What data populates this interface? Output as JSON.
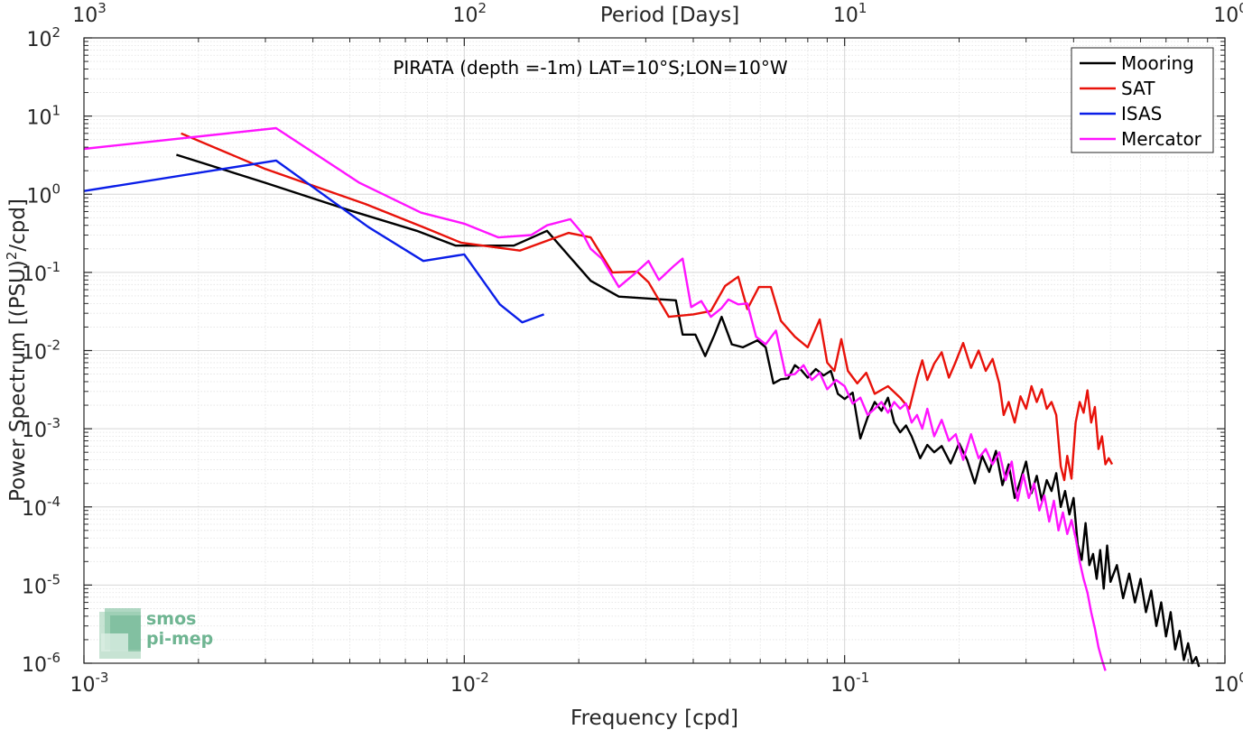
{
  "chart_data": {
    "type": "line",
    "title": "PIRATA (depth =-1m) LAT=10°S;LON=10°W",
    "xlabel": "Frequency [cpd]",
    "ylabel": "Power Spectrum [(PSU)",
    "ylabel_sup": "2",
    "ylabel_tail": "/cpd]",
    "top_xlabel": "Period [Days]",
    "x_scale": "log",
    "y_scale": "log",
    "xlim": [
      0.001,
      1
    ],
    "ylim": [
      1e-06,
      100
    ],
    "grid": true,
    "legend_position": "top-right",
    "x_ticks": [
      {
        "value": 0.001,
        "base": "10",
        "exp": "-3"
      },
      {
        "value": 0.01,
        "base": "10",
        "exp": "-2"
      },
      {
        "value": 0.1,
        "base": "10",
        "exp": "-1"
      },
      {
        "value": 1,
        "base": "10",
        "exp": "0"
      }
    ],
    "top_ticks": [
      {
        "value": 0.001,
        "base": "10",
        "exp": "3"
      },
      {
        "value": 0.01,
        "base": "10",
        "exp": "2"
      },
      {
        "value": 0.1,
        "base": "10",
        "exp": "1"
      },
      {
        "value": 1,
        "base": "10",
        "exp": "0"
      }
    ],
    "y_ticks": [
      {
        "value": 1e-06,
        "base": "10",
        "exp": "-6"
      },
      {
        "value": 1e-05,
        "base": "10",
        "exp": "-5"
      },
      {
        "value": 0.0001,
        "base": "10",
        "exp": "-4"
      },
      {
        "value": 0.001,
        "base": "10",
        "exp": "-3"
      },
      {
        "value": 0.01,
        "base": "10",
        "exp": "-2"
      },
      {
        "value": 0.1,
        "base": "10",
        "exp": "-1"
      },
      {
        "value": 1,
        "base": "10",
        "exp": "0"
      },
      {
        "value": 10,
        "base": "10",
        "exp": "1"
      },
      {
        "value": 100,
        "base": "10",
        "exp": "2"
      }
    ],
    "series": [
      {
        "name": "Mooring",
        "color": "#000000",
        "points": [
          [
            0.00175,
            3.2
          ],
          [
            0.003,
            1.4
          ],
          [
            0.005,
            0.62
          ],
          [
            0.0075,
            0.34
          ],
          [
            0.0095,
            0.22
          ],
          [
            0.0135,
            0.22
          ],
          [
            0.0165,
            0.34
          ],
          [
            0.0215,
            0.078
          ],
          [
            0.0255,
            0.049
          ],
          [
            0.031,
            0.046
          ],
          [
            0.036,
            0.044
          ],
          [
            0.0375,
            0.016
          ],
          [
            0.0405,
            0.016
          ],
          [
            0.043,
            0.0085
          ],
          [
            0.0455,
            0.016
          ],
          [
            0.0475,
            0.027
          ],
          [
            0.0505,
            0.012
          ],
          [
            0.054,
            0.011
          ],
          [
            0.059,
            0.0135
          ],
          [
            0.062,
            0.011
          ],
          [
            0.065,
            0.0038
          ],
          [
            0.068,
            0.0043
          ],
          [
            0.071,
            0.0044
          ],
          [
            0.074,
            0.0065
          ],
          [
            0.077,
            0.0056
          ],
          [
            0.08,
            0.0045
          ],
          [
            0.084,
            0.0058
          ],
          [
            0.088,
            0.0048
          ],
          [
            0.092,
            0.0055
          ],
          [
            0.096,
            0.0028
          ],
          [
            0.1,
            0.0024
          ],
          [
            0.105,
            0.0029
          ],
          [
            0.11,
            0.00075
          ],
          [
            0.115,
            0.0014
          ],
          [
            0.12,
            0.0022
          ],
          [
            0.125,
            0.0017
          ],
          [
            0.13,
            0.0025
          ],
          [
            0.135,
            0.0012
          ],
          [
            0.14,
            0.0009
          ],
          [
            0.145,
            0.0011
          ],
          [
            0.15,
            0.0008
          ],
          [
            0.158,
            0.00042
          ],
          [
            0.165,
            0.00062
          ],
          [
            0.172,
            0.0005
          ],
          [
            0.18,
            0.0006
          ],
          [
            0.19,
            0.00036
          ],
          [
            0.2,
            0.00065
          ],
          [
            0.21,
            0.0004
          ],
          [
            0.22,
            0.0002
          ],
          [
            0.23,
            0.00045
          ],
          [
            0.24,
            0.00028
          ],
          [
            0.25,
            0.00052
          ],
          [
            0.26,
            0.00019
          ],
          [
            0.27,
            0.00035
          ],
          [
            0.28,
            0.00013
          ],
          [
            0.29,
            0.00022
          ],
          [
            0.3,
            0.00038
          ],
          [
            0.31,
            0.00015
          ],
          [
            0.32,
            0.00025
          ],
          [
            0.33,
            0.00012
          ],
          [
            0.34,
            0.00022
          ],
          [
            0.35,
            0.00016
          ],
          [
            0.36,
            0.00027
          ],
          [
            0.37,
            0.0001
          ],
          [
            0.38,
            0.00016
          ],
          [
            0.39,
            8e-05
          ],
          [
            0.4,
            0.00013
          ],
          [
            0.41,
            3.3e-05
          ],
          [
            0.42,
            2.1e-05
          ],
          [
            0.43,
            6.2e-05
          ],
          [
            0.44,
            1.8e-05
          ],
          [
            0.45,
            2.5e-05
          ],
          [
            0.46,
            1.2e-05
          ],
          [
            0.47,
            2.8e-05
          ],
          [
            0.48,
            9e-06
          ],
          [
            0.49,
            3.2e-05
          ],
          [
            0.5,
            1.1e-05
          ],
          [
            0.52,
            1.8e-05
          ],
          [
            0.54,
            6.8e-06
          ],
          [
            0.56,
            1.4e-05
          ],
          [
            0.58,
            6e-06
          ],
          [
            0.6,
            1.2e-05
          ],
          [
            0.62,
            4.5e-06
          ],
          [
            0.64,
            8.5e-06
          ],
          [
            0.66,
            3e-06
          ],
          [
            0.68,
            6e-06
          ],
          [
            0.7,
            2.2e-06
          ],
          [
            0.72,
            4.5e-06
          ],
          [
            0.74,
            1.5e-06
          ],
          [
            0.76,
            2.6e-06
          ],
          [
            0.78,
            1.1e-06
          ],
          [
            0.8,
            1.8e-06
          ],
          [
            0.82,
            1e-06
          ],
          [
            0.84,
            1.2e-06
          ],
          [
            0.855,
            9e-07
          ]
        ]
      },
      {
        "name": "SAT",
        "color": "#e8120a",
        "points": [
          [
            0.0018,
            6
          ],
          [
            0.003,
            2.1
          ],
          [
            0.0055,
            0.75
          ],
          [
            0.0078,
            0.38
          ],
          [
            0.0098,
            0.24
          ],
          [
            0.014,
            0.19
          ],
          [
            0.0188,
            0.32
          ],
          [
            0.0215,
            0.28
          ],
          [
            0.0245,
            0.1
          ],
          [
            0.0285,
            0.102
          ],
          [
            0.0305,
            0.075
          ],
          [
            0.0345,
            0.027
          ],
          [
            0.04,
            0.029
          ],
          [
            0.0445,
            0.032
          ],
          [
            0.0485,
            0.067
          ],
          [
            0.0525,
            0.088
          ],
          [
            0.0555,
            0.034
          ],
          [
            0.0595,
            0.065
          ],
          [
            0.064,
            0.065
          ],
          [
            0.068,
            0.024
          ],
          [
            0.074,
            0.015
          ],
          [
            0.08,
            0.011
          ],
          [
            0.086,
            0.025
          ],
          [
            0.09,
            0.007
          ],
          [
            0.094,
            0.0055
          ],
          [
            0.098,
            0.014
          ],
          [
            0.102,
            0.0055
          ],
          [
            0.108,
            0.0038
          ],
          [
            0.114,
            0.0052
          ],
          [
            0.12,
            0.0028
          ],
          [
            0.13,
            0.0035
          ],
          [
            0.14,
            0.0025
          ],
          [
            0.148,
            0.0018
          ],
          [
            0.155,
            0.0045
          ],
          [
            0.16,
            0.0075
          ],
          [
            0.165,
            0.0042
          ],
          [
            0.172,
            0.0068
          ],
          [
            0.18,
            0.0095
          ],
          [
            0.188,
            0.0045
          ],
          [
            0.195,
            0.0068
          ],
          [
            0.205,
            0.0125
          ],
          [
            0.215,
            0.006
          ],
          [
            0.225,
            0.01
          ],
          [
            0.235,
            0.0055
          ],
          [
            0.245,
            0.0078
          ],
          [
            0.255,
            0.0038
          ],
          [
            0.262,
            0.0015
          ],
          [
            0.27,
            0.0022
          ],
          [
            0.28,
            0.0012
          ],
          [
            0.29,
            0.0026
          ],
          [
            0.3,
            0.0018
          ],
          [
            0.31,
            0.0035
          ],
          [
            0.32,
            0.0022
          ],
          [
            0.33,
            0.0032
          ],
          [
            0.34,
            0.0018
          ],
          [
            0.35,
            0.0022
          ],
          [
            0.36,
            0.0015
          ],
          [
            0.37,
            0.00033
          ],
          [
            0.378,
            0.00022
          ],
          [
            0.385,
            0.00045
          ],
          [
            0.395,
            0.00023
          ],
          [
            0.405,
            0.0012
          ],
          [
            0.415,
            0.0022
          ],
          [
            0.425,
            0.0016
          ],
          [
            0.435,
            0.0031
          ],
          [
            0.445,
            0.0012
          ],
          [
            0.455,
            0.0019
          ],
          [
            0.465,
            0.00055
          ],
          [
            0.475,
            0.0008
          ],
          [
            0.485,
            0.00035
          ],
          [
            0.495,
            0.00042
          ],
          [
            0.505,
            0.00035
          ]
        ]
      },
      {
        "name": "ISAS",
        "color": "#0a1ee8",
        "points": [
          [
            0.001,
            1.1
          ],
          [
            0.0032,
            2.7
          ],
          [
            0.0056,
            0.38
          ],
          [
            0.0078,
            0.14
          ],
          [
            0.01,
            0.17
          ],
          [
            0.0124,
            0.039
          ],
          [
            0.0142,
            0.023
          ],
          [
            0.0162,
            0.029
          ]
        ]
      },
      {
        "name": "Mercator",
        "color": "#ff14ff",
        "points": [
          [
            0.001,
            3.8
          ],
          [
            0.0032,
            7
          ],
          [
            0.0053,
            1.4
          ],
          [
            0.0077,
            0.58
          ],
          [
            0.01,
            0.42
          ],
          [
            0.0123,
            0.28
          ],
          [
            0.015,
            0.3
          ],
          [
            0.0165,
            0.4
          ],
          [
            0.019,
            0.48
          ],
          [
            0.0205,
            0.31
          ],
          [
            0.0215,
            0.2
          ],
          [
            0.023,
            0.15
          ],
          [
            0.0255,
            0.065
          ],
          [
            0.0283,
            0.1
          ],
          [
            0.0305,
            0.14
          ],
          [
            0.0325,
            0.08
          ],
          [
            0.0355,
            0.12
          ],
          [
            0.0375,
            0.15
          ],
          [
            0.0395,
            0.036
          ],
          [
            0.042,
            0.043
          ],
          [
            0.0445,
            0.027
          ],
          [
            0.0475,
            0.035
          ],
          [
            0.0495,
            0.045
          ],
          [
            0.0525,
            0.039
          ],
          [
            0.0555,
            0.04
          ],
          [
            0.0585,
            0.015
          ],
          [
            0.062,
            0.012
          ],
          [
            0.066,
            0.018
          ],
          [
            0.07,
            0.0048
          ],
          [
            0.074,
            0.005
          ],
          [
            0.078,
            0.0065
          ],
          [
            0.082,
            0.0042
          ],
          [
            0.086,
            0.0052
          ],
          [
            0.09,
            0.0032
          ],
          [
            0.095,
            0.0042
          ],
          [
            0.1,
            0.0035
          ],
          [
            0.105,
            0.0021
          ],
          [
            0.11,
            0.0025
          ],
          [
            0.115,
            0.0015
          ],
          [
            0.12,
            0.0018
          ],
          [
            0.125,
            0.0022
          ],
          [
            0.13,
            0.0016
          ],
          [
            0.135,
            0.0022
          ],
          [
            0.14,
            0.0018
          ],
          [
            0.145,
            0.0021
          ],
          [
            0.15,
            0.0012
          ],
          [
            0.155,
            0.0015
          ],
          [
            0.16,
            0.001
          ],
          [
            0.165,
            0.0018
          ],
          [
            0.172,
            0.0008
          ],
          [
            0.18,
            0.0013
          ],
          [
            0.188,
            0.0007
          ],
          [
            0.196,
            0.00085
          ],
          [
            0.205,
            0.0004
          ],
          [
            0.215,
            0.00085
          ],
          [
            0.225,
            0.00042
          ],
          [
            0.235,
            0.00055
          ],
          [
            0.245,
            0.00035
          ],
          [
            0.255,
            0.0005
          ],
          [
            0.265,
            0.00022
          ],
          [
            0.275,
            0.00038
          ],
          [
            0.285,
            0.00012
          ],
          [
            0.295,
            0.00026
          ],
          [
            0.305,
            0.00013
          ],
          [
            0.315,
            0.0002
          ],
          [
            0.325,
            9e-05
          ],
          [
            0.335,
            0.00014
          ],
          [
            0.345,
            6.5e-05
          ],
          [
            0.355,
            0.00012
          ],
          [
            0.365,
            5e-05
          ],
          [
            0.375,
            8.5e-05
          ],
          [
            0.385,
            4.5e-05
          ],
          [
            0.395,
            6.8e-05
          ],
          [
            0.405,
            4e-05
          ],
          [
            0.415,
            2e-05
          ],
          [
            0.425,
            1.2e-05
          ],
          [
            0.435,
            8e-06
          ],
          [
            0.445,
            4.5e-06
          ],
          [
            0.455,
            2.8e-06
          ],
          [
            0.465,
            1.6e-06
          ],
          [
            0.475,
            1.1e-06
          ],
          [
            0.485,
            8e-07
          ]
        ]
      }
    ]
  },
  "logo": {
    "line1": "smos",
    "line2": "pi-mep",
    "color": "#6fb592"
  }
}
